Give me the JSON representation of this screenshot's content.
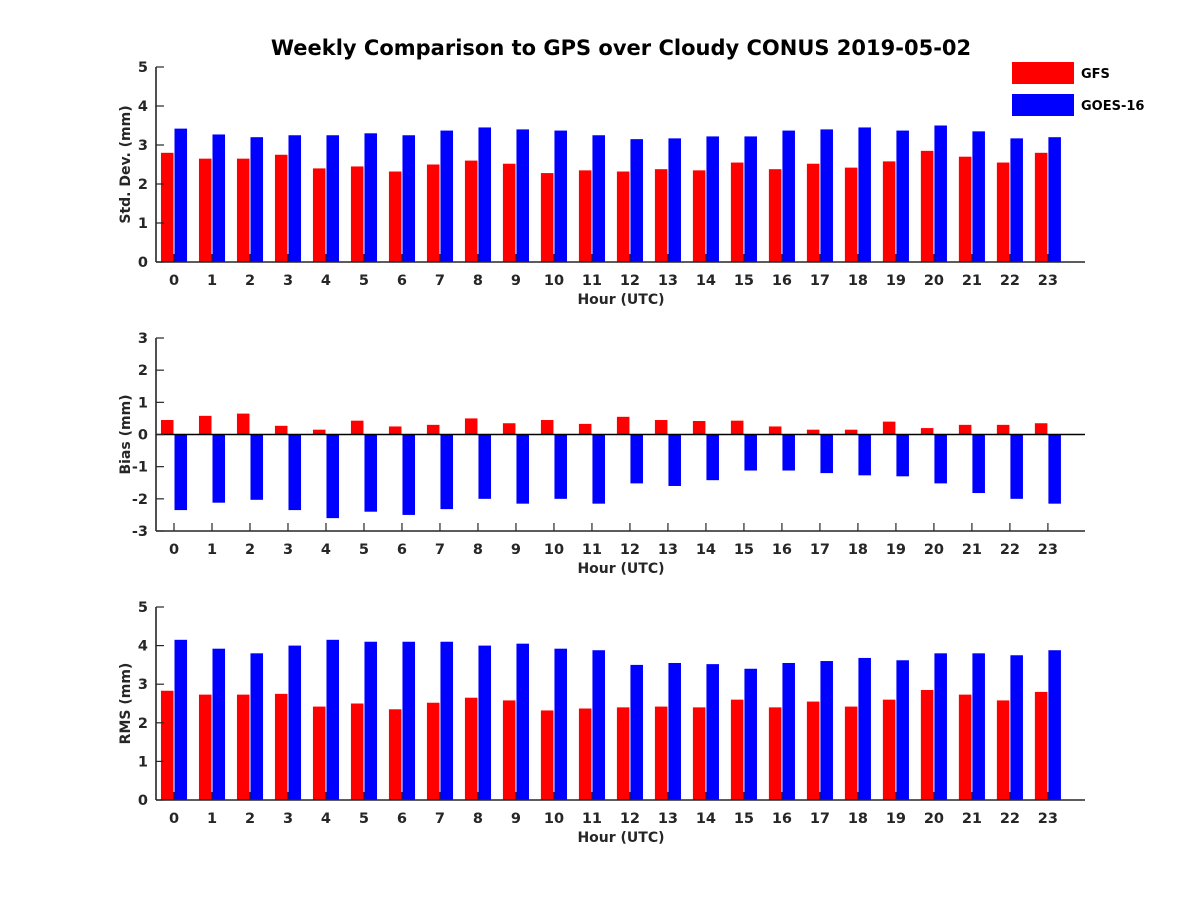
{
  "figure": {
    "title": "Weekly Comparison to GPS over Cloudy CONUS 2019-05-02"
  },
  "legend": {
    "entries": [
      {
        "name": "GFS",
        "color": "#ff0000"
      },
      {
        "name": "GOES-16",
        "color": "#0000ff"
      }
    ],
    "placement": "top-right"
  },
  "chart_data": [
    {
      "type": "bar",
      "xlabel": "Hour (UTC)",
      "ylabel": "Std. Dev. (mm)",
      "ylim": [
        0,
        5
      ],
      "yticks": [
        0,
        1,
        2,
        3,
        4,
        5
      ],
      "grid": false,
      "categories": [
        "0",
        "1",
        "2",
        "3",
        "4",
        "5",
        "6",
        "7",
        "8",
        "9",
        "10",
        "11",
        "12",
        "13",
        "14",
        "15",
        "16",
        "17",
        "18",
        "19",
        "20",
        "21",
        "22",
        "23"
      ],
      "series": [
        {
          "name": "GFS",
          "color": "#ff0000",
          "values": [
            2.8,
            2.65,
            2.65,
            2.75,
            2.4,
            2.45,
            2.32,
            2.5,
            2.6,
            2.52,
            2.28,
            2.35,
            2.32,
            2.38,
            2.35,
            2.55,
            2.38,
            2.52,
            2.42,
            2.58,
            2.85,
            2.7,
            2.55,
            2.8
          ]
        },
        {
          "name": "GOES-16",
          "color": "#0000ff",
          "values": [
            3.42,
            3.27,
            3.2,
            3.25,
            3.25,
            3.3,
            3.25,
            3.37,
            3.45,
            3.4,
            3.37,
            3.25,
            3.15,
            3.17,
            3.22,
            3.22,
            3.37,
            3.4,
            3.45,
            3.37,
            3.5,
            3.35,
            3.17,
            3.2
          ]
        }
      ]
    },
    {
      "type": "bar",
      "xlabel": "Hour (UTC)",
      "ylabel": "Bias (mm)",
      "ylim": [
        -3,
        3
      ],
      "yticks": [
        -3,
        -2,
        -1,
        0,
        1,
        2,
        3
      ],
      "grid": false,
      "zero_line": true,
      "categories": [
        "0",
        "1",
        "2",
        "3",
        "4",
        "5",
        "6",
        "7",
        "8",
        "9",
        "10",
        "11",
        "12",
        "13",
        "14",
        "15",
        "16",
        "17",
        "18",
        "19",
        "20",
        "21",
        "22",
        "23"
      ],
      "series": [
        {
          "name": "GFS",
          "color": "#ff0000",
          "values": [
            0.45,
            0.58,
            0.65,
            0.27,
            0.15,
            0.43,
            0.25,
            0.3,
            0.5,
            0.35,
            0.45,
            0.33,
            0.55,
            0.45,
            0.42,
            0.43,
            0.25,
            0.15,
            0.15,
            0.4,
            0.2,
            0.3,
            0.3,
            0.35
          ]
        },
        {
          "name": "GOES-16",
          "color": "#0000ff",
          "values": [
            -2.35,
            -2.12,
            -2.03,
            -2.35,
            -2.6,
            -2.4,
            -2.5,
            -2.32,
            -2.0,
            -2.15,
            -2.0,
            -2.15,
            -1.52,
            -1.6,
            -1.42,
            -1.12,
            -1.12,
            -1.2,
            -1.27,
            -1.3,
            -1.52,
            -1.82,
            -2.0,
            -2.15
          ]
        }
      ]
    },
    {
      "type": "bar",
      "xlabel": "Hour (UTC)",
      "ylabel": "RMS (mm)",
      "ylim": [
        0,
        5
      ],
      "yticks": [
        0,
        1,
        2,
        3,
        4,
        5
      ],
      "grid": false,
      "categories": [
        "0",
        "1",
        "2",
        "3",
        "4",
        "5",
        "6",
        "7",
        "8",
        "9",
        "10",
        "11",
        "12",
        "13",
        "14",
        "15",
        "16",
        "17",
        "18",
        "19",
        "20",
        "21",
        "22",
        "23"
      ],
      "series": [
        {
          "name": "GFS",
          "color": "#ff0000",
          "values": [
            2.83,
            2.73,
            2.73,
            2.75,
            2.42,
            2.5,
            2.35,
            2.52,
            2.65,
            2.58,
            2.32,
            2.37,
            2.4,
            2.42,
            2.4,
            2.6,
            2.4,
            2.55,
            2.42,
            2.6,
            2.85,
            2.73,
            2.58,
            2.8
          ]
        },
        {
          "name": "GOES-16",
          "color": "#0000ff",
          "values": [
            4.15,
            3.92,
            3.8,
            4.0,
            4.15,
            4.1,
            4.1,
            4.1,
            4.0,
            4.05,
            3.92,
            3.88,
            3.5,
            3.55,
            3.52,
            3.4,
            3.55,
            3.6,
            3.68,
            3.62,
            3.8,
            3.8,
            3.75,
            3.88
          ]
        }
      ]
    }
  ]
}
